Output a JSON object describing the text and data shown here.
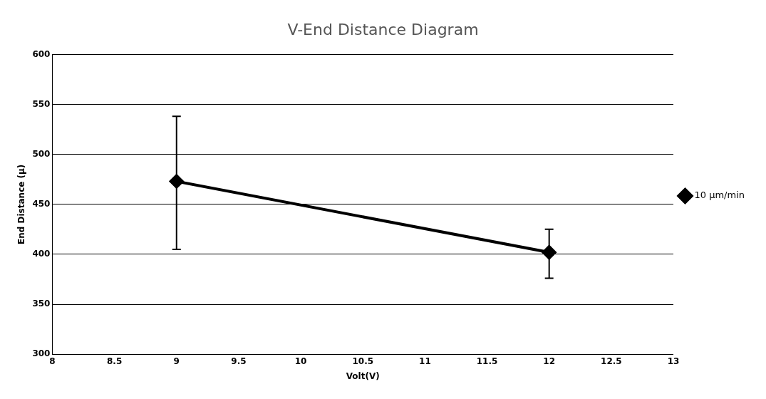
{
  "chart_data": {
    "type": "line",
    "title": "V-End Distance Diagram",
    "xlabel": "Volt(V)",
    "ylabel": "End Distance (µ)",
    "x": [
      9,
      12
    ],
    "series": [
      {
        "name": "10 µm/min",
        "color": "#000000",
        "values": [
          473,
          402
        ],
        "errors": [
          [
            405,
            538
          ],
          [
            376,
            425
          ]
        ]
      }
    ],
    "xlim": [
      8,
      13
    ],
    "xticks": [
      8,
      8.5,
      9,
      9.5,
      10,
      10.5,
      11,
      11.5,
      12,
      12.5,
      13
    ],
    "ylim": [
      300,
      600
    ],
    "yticks": [
      300,
      350,
      400,
      450,
      500,
      550,
      600
    ],
    "grid": "y",
    "legend": "right",
    "marker": "diamond",
    "line_style": "solid"
  }
}
